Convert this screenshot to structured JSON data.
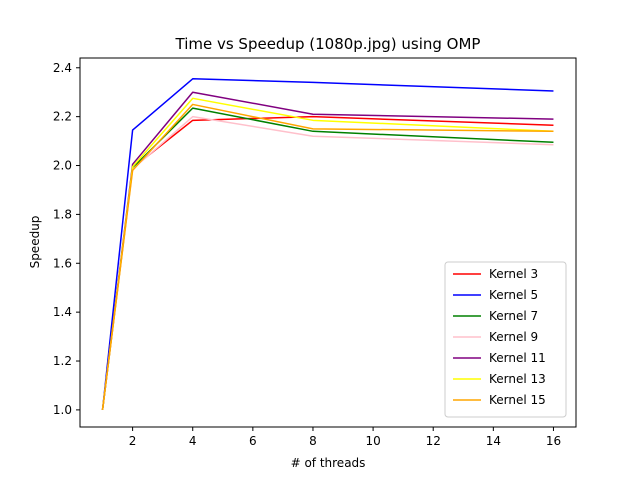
{
  "chart_data": {
    "type": "line",
    "title": "Time vs Speedup (1080p.jpg) using OMP",
    "xlabel": "# of threads",
    "ylabel": "Speedup",
    "xlim": [
      0.25,
      16.75
    ],
    "ylim": [
      0.93,
      2.44
    ],
    "x_ticks": [
      2,
      4,
      6,
      8,
      10,
      12,
      14,
      16
    ],
    "y_ticks": [
      1.0,
      1.2,
      1.4,
      1.6,
      1.8,
      2.0,
      2.2,
      2.4
    ],
    "grid": false,
    "legend_position": "lower right",
    "x": [
      1,
      2,
      4,
      8,
      16
    ],
    "series": [
      {
        "name": "Kernel 3",
        "color": "#ff0000",
        "values": [
          1.0,
          1.99,
          2.185,
          2.2,
          2.165
        ]
      },
      {
        "name": "Kernel 5",
        "color": "#0000ff",
        "values": [
          1.0,
          2.145,
          2.355,
          2.34,
          2.305
        ]
      },
      {
        "name": "Kernel 7",
        "color": "#008000",
        "values": [
          1.0,
          1.99,
          2.235,
          2.14,
          2.095
        ]
      },
      {
        "name": "Kernel 9",
        "color": "#ffc0cb",
        "values": [
          1.0,
          1.985,
          2.2,
          2.12,
          2.085
        ]
      },
      {
        "name": "Kernel 11",
        "color": "#800080",
        "values": [
          1.0,
          2.005,
          2.3,
          2.21,
          2.19
        ]
      },
      {
        "name": "Kernel 13",
        "color": "#ffff00",
        "values": [
          1.0,
          1.995,
          2.275,
          2.185,
          2.14
        ]
      },
      {
        "name": "Kernel 15",
        "color": "#ffa500",
        "values": [
          1.0,
          1.98,
          2.25,
          2.15,
          2.14
        ]
      }
    ]
  }
}
